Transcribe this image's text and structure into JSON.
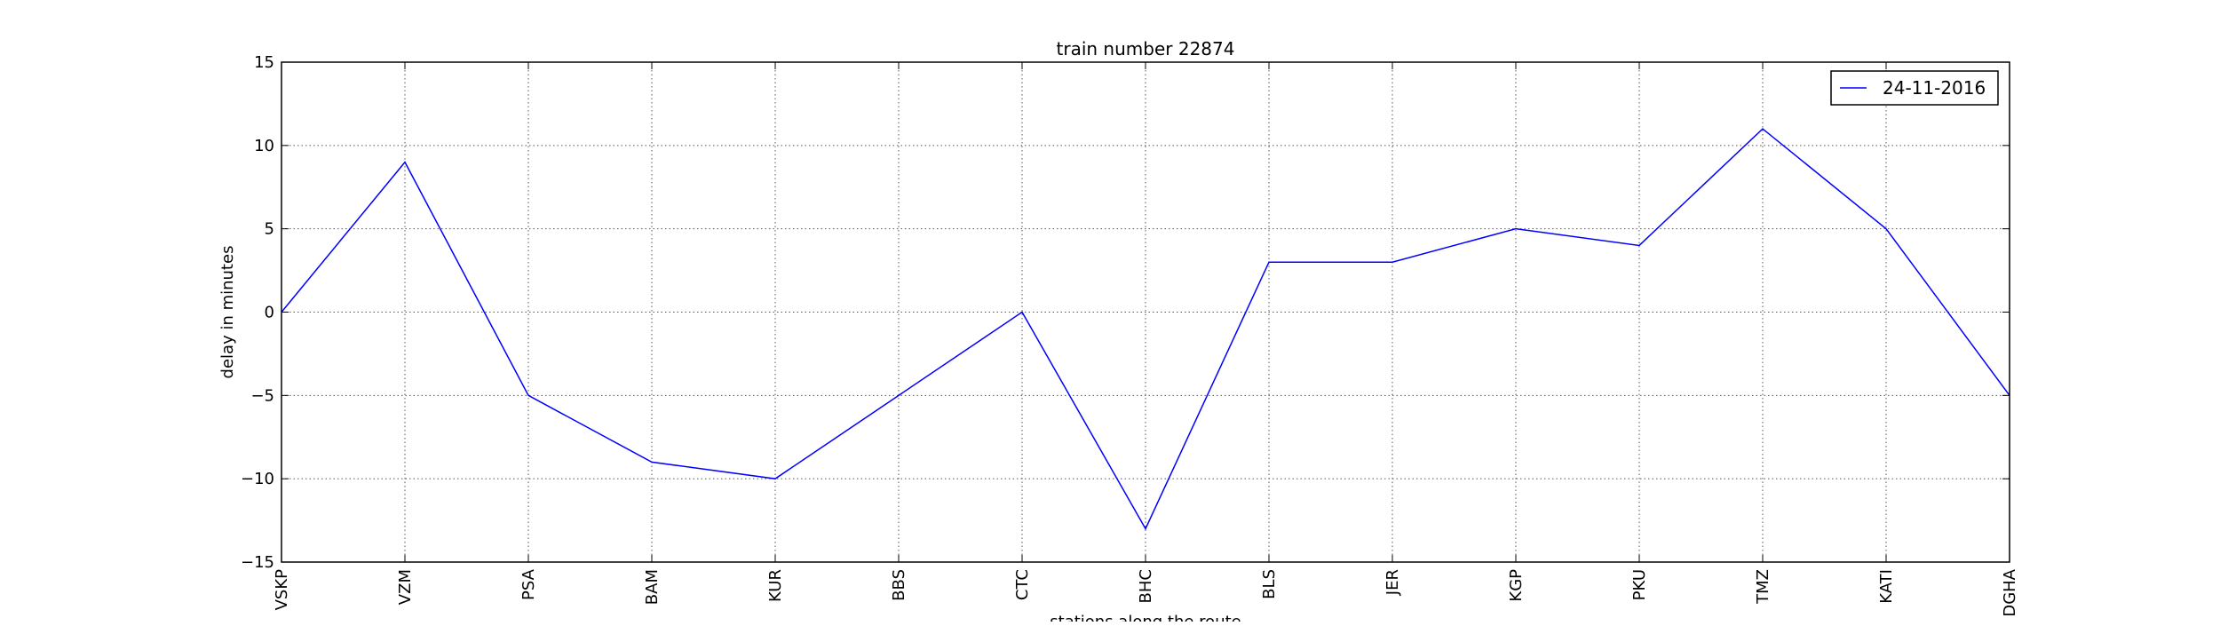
{
  "chart_data": {
    "type": "line",
    "title": "train number 22874",
    "xlabel": "stations along the route",
    "ylabel": "delay in minutes",
    "categories": [
      "VSKP",
      "VZM",
      "PSA",
      "BAM",
      "KUR",
      "BBS",
      "CTC",
      "BHC",
      "BLS",
      "JER",
      "KGP",
      "PKU",
      "TMZ",
      "KATI",
      "DGHA"
    ],
    "series": [
      {
        "name": "24-11-2016",
        "color": "#0000ff",
        "values": [
          0,
          9,
          -5,
          -9,
          -10,
          -5,
          0,
          -13,
          3,
          3,
          5,
          4,
          11,
          5,
          -5
        ]
      }
    ],
    "ylim": [
      -15,
      15
    ],
    "yticks": [
      -15,
      -10,
      -5,
      0,
      5,
      10,
      15
    ],
    "ytick_labels": [
      "−15",
      "−10",
      "−5",
      "0",
      "5",
      "10",
      "15"
    ],
    "grid": true,
    "legend_position": "top-right"
  }
}
